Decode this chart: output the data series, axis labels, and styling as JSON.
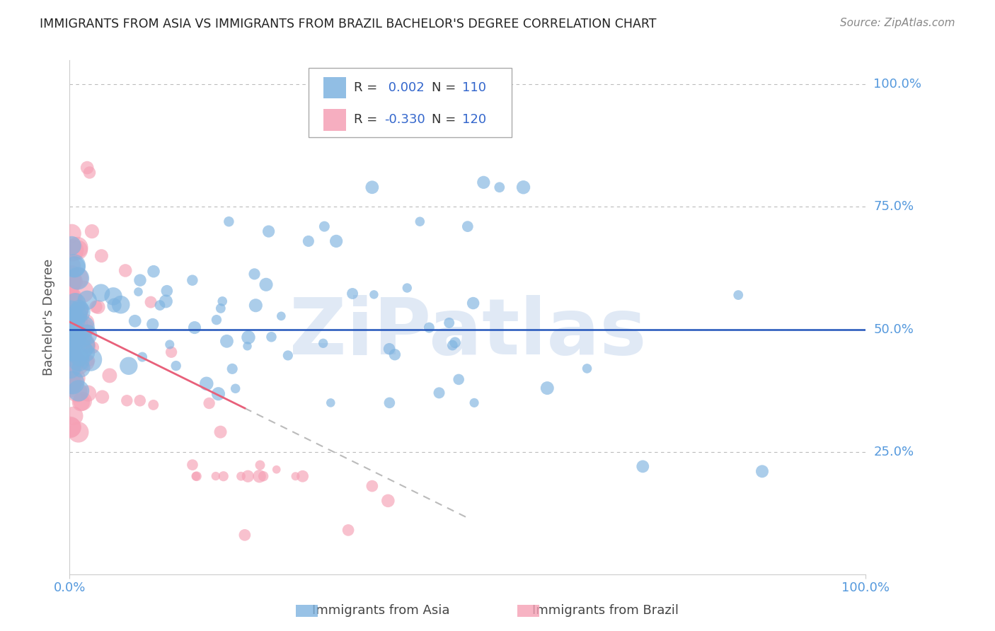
{
  "title": "IMMIGRANTS FROM ASIA VS IMMIGRANTS FROM BRAZIL BACHELOR'S DEGREE CORRELATION CHART",
  "source": "Source: ZipAtlas.com",
  "ylabel": "Bachelor's Degree",
  "legend_r_asia": " 0.002",
  "legend_n_asia": "110",
  "legend_r_brazil": "-0.330",
  "legend_n_brazil": "120",
  "color_asia": "#7EB3E0",
  "color_brazil": "#F5A0B5",
  "color_asia_dark": "#3366CC",
  "color_brazil_dark": "#E8607A",
  "color_hline": "#2255BB",
  "color_grid": "#BBBBBB",
  "color_right_labels": "#5599DD",
  "background": "#FFFFFF",
  "watermark_text": "ZiPatlas",
  "watermark_color": "#C8D8EE"
}
